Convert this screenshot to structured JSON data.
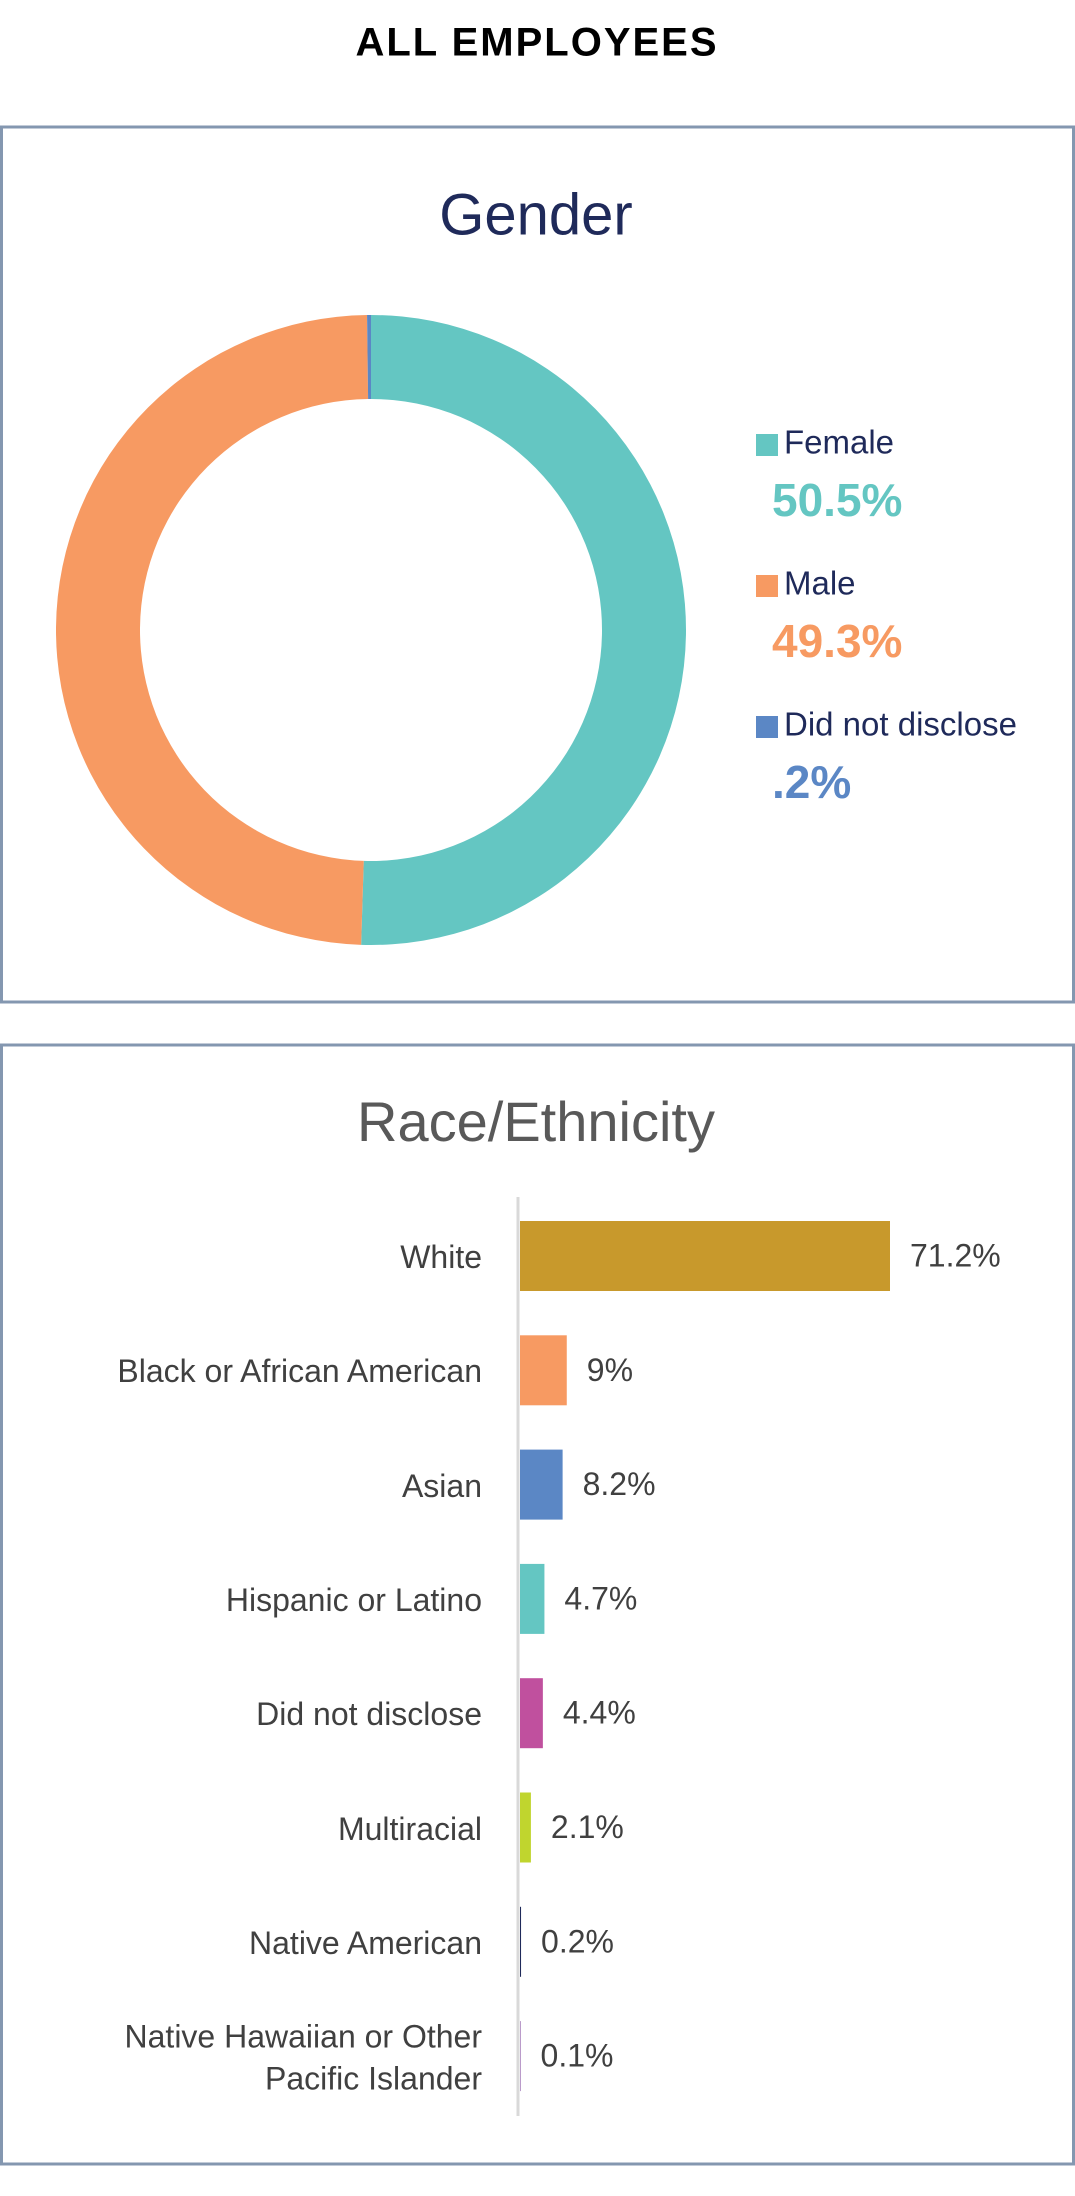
{
  "header": {
    "title": "ALL EMPLOYEES"
  },
  "chart_data": [
    {
      "type": "pie",
      "title": "Gender",
      "categories": [
        "Female",
        "Male",
        "Did not disclose"
      ],
      "values": [
        50.5,
        49.3,
        0.2
      ],
      "value_labels": [
        "50.5%",
        "49.3%",
        ".2%"
      ],
      "colors": [
        "#64c6c2",
        "#f79a62",
        "#5b87c5"
      ]
    },
    {
      "type": "bar",
      "title": "Race/Ethnicity",
      "categories": [
        "White",
        "Black or African American",
        "Asian",
        "Hispanic or Latino",
        "Did not disclose",
        "Multiracial",
        "Native American",
        "Native Hawaiian or Other Pacific Islander"
      ],
      "values": [
        71.2,
        9,
        8.2,
        4.7,
        4.4,
        2.1,
        0.2,
        0.1
      ],
      "value_labels": [
        "71.2%",
        "9%",
        "8.2%",
        "4.7%",
        "4.4%",
        "2.1%",
        "0.2%",
        "0.1%"
      ],
      "colors": [
        "#c8992c",
        "#f79a62",
        "#5b87c5",
        "#64c6c2",
        "#c0509e",
        "#c0d52e",
        "#1f2a5a",
        "#7a3f98"
      ]
    }
  ]
}
